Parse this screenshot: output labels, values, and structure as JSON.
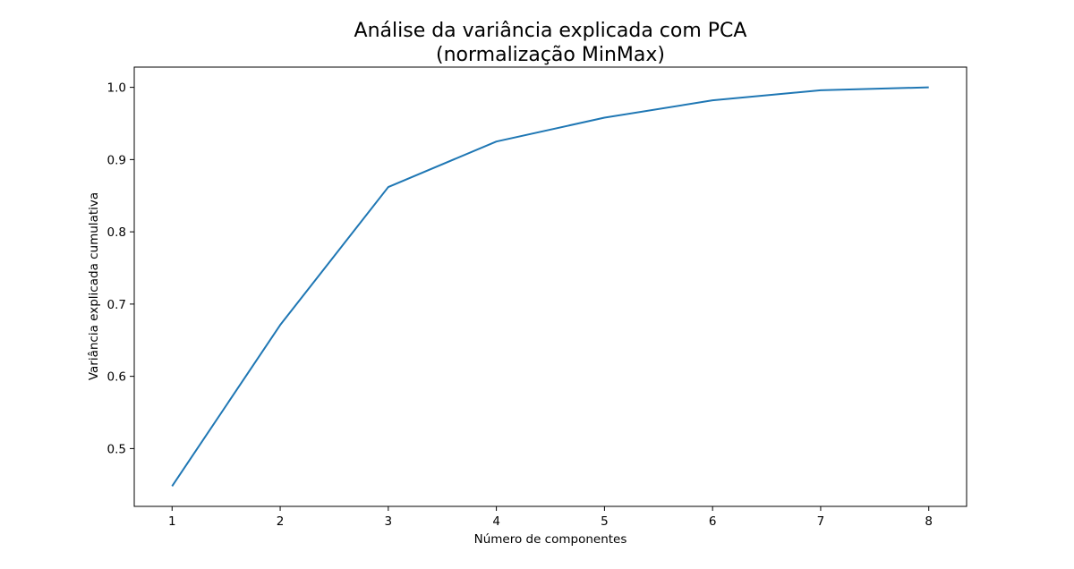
{
  "chart_data": {
    "type": "line",
    "title": "Análise da variância explicada com PCA",
    "subtitle": "(normalização MinMax)",
    "xlabel": "Número de componentes",
    "ylabel": "Variância explicada cumulativa",
    "x": [
      1,
      2,
      3,
      4,
      5,
      6,
      7,
      8
    ],
    "series": [
      {
        "values": [
          0.448,
          0.671,
          0.862,
          0.925,
          0.958,
          0.982,
          0.996,
          1.0
        ]
      }
    ],
    "xticks": [
      "1",
      "2",
      "3",
      "4",
      "5",
      "6",
      "7",
      "8"
    ],
    "yticks": [
      "0.5",
      "0.6",
      "0.7",
      "0.8",
      "0.9",
      "1.0"
    ],
    "xlim": [
      0.65,
      8.35
    ],
    "ylim": [
      0.42,
      1.028
    ],
    "grid": false,
    "colors": {
      "line": "#1f77b4"
    }
  }
}
